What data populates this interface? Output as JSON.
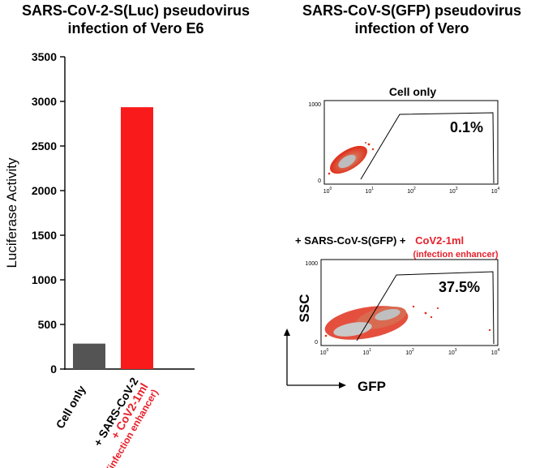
{
  "left_title": {
    "line1": "SARS-CoV-2-S(Luc) pseudovirus",
    "line2": "infection of Vero E6"
  },
  "right_title": {
    "line1": "SARS-CoV-S(GFP) pseudovirus",
    "line2": "infection of Vero"
  },
  "chart_data": {
    "type": "bar",
    "title": "SARS-CoV-2-S(Luc) pseudovirus infection of Vero E6",
    "ylabel": "Luciferase Activity",
    "ylim": [
      0,
      3500
    ],
    "yticks": [
      "0",
      "500",
      "1000",
      "1500",
      "2000",
      "2500",
      "3000",
      "3500"
    ],
    "categories": [
      "Cell only",
      "+ SARS-CoV-2 + CoV2-1ml (infection enhancer)"
    ],
    "category_lines": [
      [
        {
          "text": "Cell only",
          "color": "#000000"
        }
      ],
      [
        {
          "text": "+ SARS-CoV-2",
          "color": "#000000"
        },
        {
          "text": "+ CoV2-1ml",
          "color": "#e8202a"
        },
        {
          "text": "(infection enhancer)",
          "color": "#e8202a"
        }
      ]
    ],
    "values": [
      285,
      2935
    ],
    "colors": [
      "#545454",
      "#f91b1b"
    ],
    "grid": false
  },
  "flow_panels": [
    {
      "label": "Cell only",
      "percent": "0.1%"
    },
    {
      "label_black": "+ SARS-CoV-S(GFP) +",
      "label_red": "CoV2-1ml",
      "sublabel": "(infection enhancer)",
      "percent": "37.5%"
    }
  ],
  "flow_axes": {
    "x_label": "GFP",
    "y_label": "SSC",
    "x_ticks": [
      {
        "base": "10",
        "exp": "0"
      },
      {
        "base": "10",
        "exp": "1"
      },
      {
        "base": "10",
        "exp": "2"
      },
      {
        "base": "10",
        "exp": "3"
      },
      {
        "base": "10",
        "exp": "4"
      }
    ],
    "y_ticks": [
      "0",
      "1000"
    ]
  },
  "colors": {
    "accent": "#e8202a",
    "bar_control": "#545454",
    "bar_treated": "#f91b1b"
  }
}
